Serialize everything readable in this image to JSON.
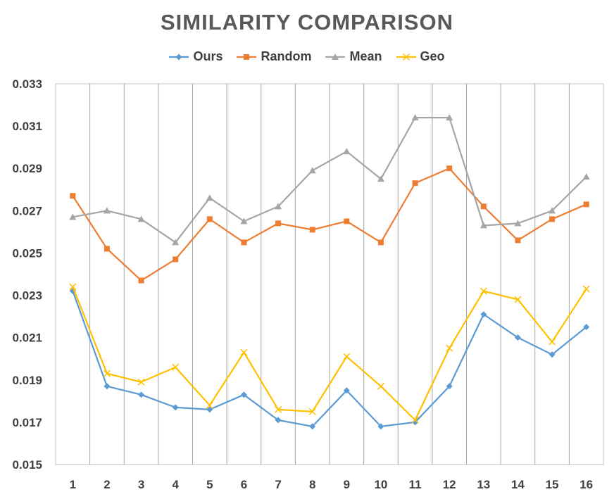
{
  "chart_data": {
    "type": "line",
    "title": "SIMILARITY COMPARISON",
    "xlabel": "",
    "ylabel": "",
    "categories": [
      "1",
      "2",
      "3",
      "4",
      "5",
      "6",
      "7",
      "8",
      "9",
      "10",
      "11",
      "12",
      "13",
      "14",
      "15",
      "16"
    ],
    "ylim": [
      0.015,
      0.033
    ],
    "yticks": [
      "0.015",
      "0.017",
      "0.019",
      "0.021",
      "0.023",
      "0.025",
      "0.027",
      "0.029",
      "0.031",
      "0.033"
    ],
    "legend_position": "top",
    "grid": "vertical",
    "series": [
      {
        "name": "Ours",
        "color": "#5B9BD5",
        "marker": "diamond",
        "values": [
          0.0232,
          0.0187,
          0.0183,
          0.0177,
          0.0176,
          0.0183,
          0.0171,
          0.0168,
          0.0185,
          0.0168,
          0.017,
          0.0187,
          0.0221,
          0.021,
          0.0202,
          0.0215
        ]
      },
      {
        "name": "Random",
        "color": "#ED7D31",
        "marker": "square",
        "values": [
          0.0277,
          0.0252,
          0.0237,
          0.0247,
          0.0266,
          0.0255,
          0.0264,
          0.0261,
          0.0265,
          0.0255,
          0.0283,
          0.029,
          0.0272,
          0.0256,
          0.0266,
          0.0273
        ]
      },
      {
        "name": "Mean",
        "color": "#A5A5A5",
        "marker": "triangle",
        "values": [
          0.0267,
          0.027,
          0.0266,
          0.0255,
          0.0276,
          0.0265,
          0.0272,
          0.0289,
          0.0298,
          0.0285,
          0.0314,
          0.0314,
          0.0263,
          0.0264,
          0.027,
          0.0286
        ]
      },
      {
        "name": "Geo",
        "color": "#FFC000",
        "marker": "x",
        "values": [
          0.0234,
          0.0193,
          0.0189,
          0.0196,
          0.0178,
          0.0203,
          0.0176,
          0.0175,
          0.0201,
          0.0187,
          0.0171,
          0.0205,
          0.0232,
          0.0228,
          0.0208,
          0.0233
        ]
      }
    ]
  }
}
